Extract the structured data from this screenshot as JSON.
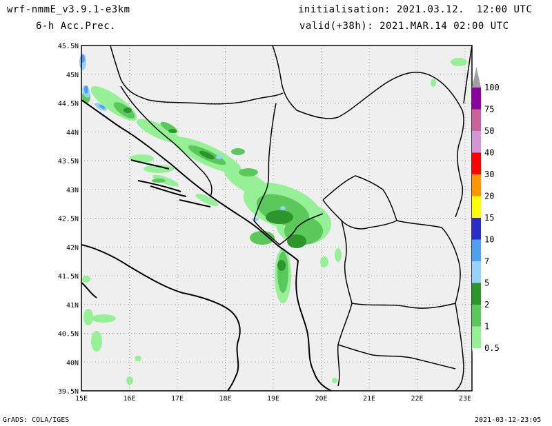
{
  "header": {
    "model": "wrf-nmmE_v3.9.1-e3km",
    "field": "6-h Acc.Prec.",
    "init": "initialisation: 2021.03.12.  12:00 UTC",
    "valid": "valid(+38h): 2021.MAR.14 02:00 UTC"
  },
  "footer": {
    "left": "GrADS: COLA/IGES",
    "right": "2021-03-12-23:05"
  },
  "axes": {
    "lon_labels": [
      "15E",
      "16E",
      "17E",
      "18E",
      "19E",
      "20E",
      "21E",
      "22E",
      "23E"
    ],
    "lat_labels": [
      "45.5N",
      "45N",
      "44.5N",
      "44N",
      "43.5N",
      "43N",
      "42.5N",
      "42N",
      "41.5N",
      "41N",
      "40.5N",
      "40N",
      "39.5N"
    ]
  },
  "colorbar": {
    "levels": [
      "100",
      "75",
      "50",
      "40",
      "30",
      "20",
      "15",
      "10",
      "7",
      "5",
      "2",
      "1",
      "0.5"
    ],
    "colors": [
      "#a0a0a0",
      "#8a00a0",
      "#c8649a",
      "#d296d2",
      "#ff0000",
      "#ff9600",
      "#ffff00",
      "#2b2bc8",
      "#4fa0f0",
      "#96d2fa",
      "#2c962c",
      "#5ac85a",
      "#96f096"
    ]
  },
  "map_colors": {
    "land": "#efefef",
    "coast": "#000000",
    "grid": "#a0a0a0"
  }
}
